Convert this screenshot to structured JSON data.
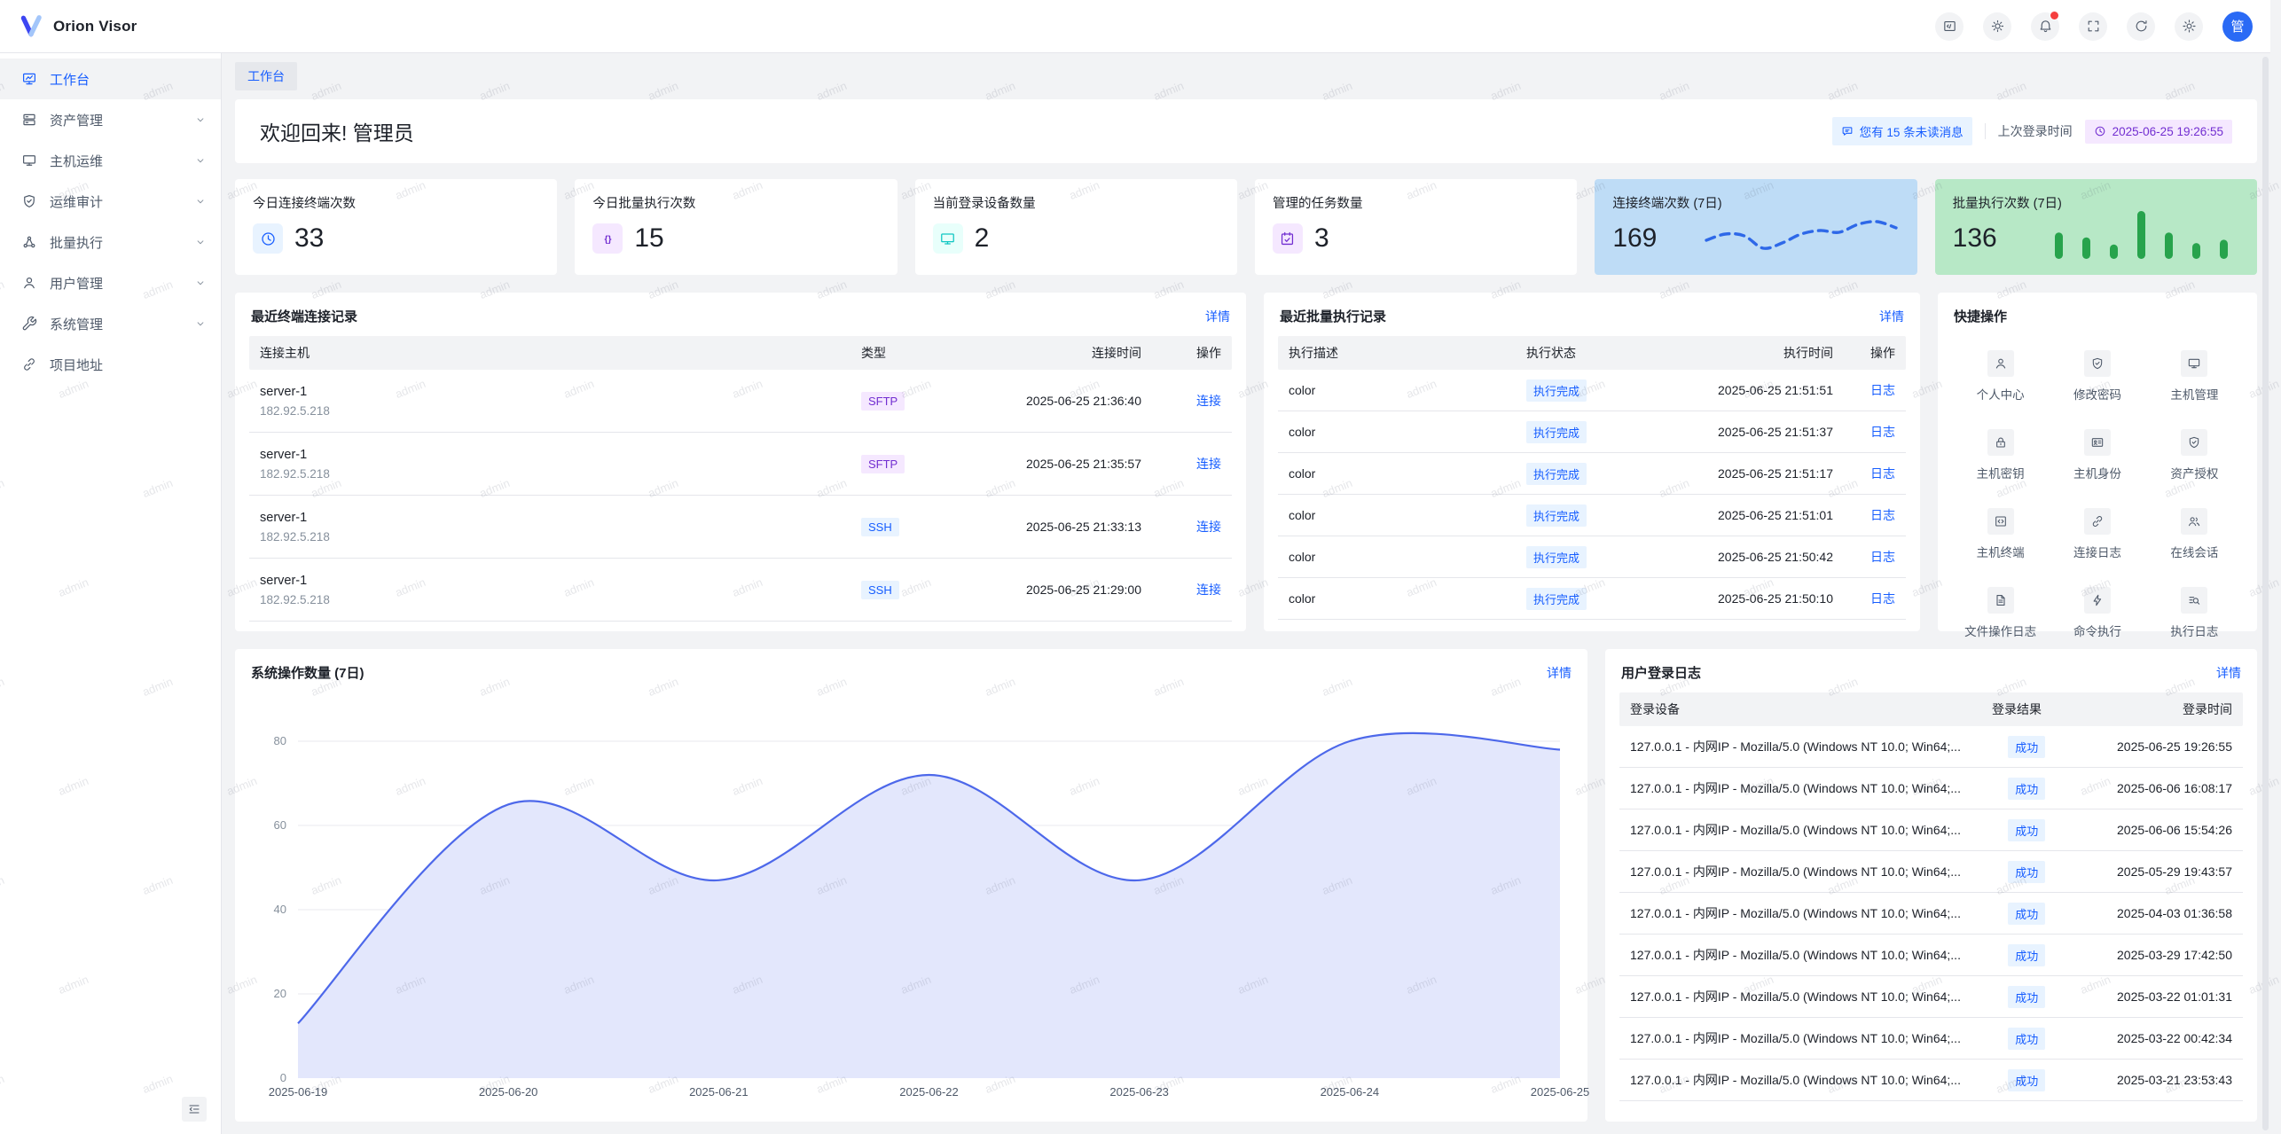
{
  "topbar": {
    "brand": "Orion Visor",
    "avatar": "管",
    "icons": [
      {
        "key": "code",
        "name": "code-icon"
      },
      {
        "key": "sun",
        "name": "theme-icon"
      },
      {
        "key": "bell",
        "name": "notifications-icon",
        "dot": true
      },
      {
        "key": "fullscreen",
        "name": "fullscreen-icon"
      },
      {
        "key": "refresh",
        "name": "refresh-icon"
      },
      {
        "key": "gear",
        "name": "settings-icon"
      }
    ]
  },
  "sidebar": {
    "items": [
      {
        "key": "workbench",
        "label": "工作台",
        "icon": "dashboard",
        "active": true,
        "chevron": false
      },
      {
        "key": "assets",
        "label": "资产管理",
        "icon": "asset",
        "chevron": true
      },
      {
        "key": "host-ops",
        "label": "主机运维",
        "icon": "monitor",
        "chevron": true
      },
      {
        "key": "ops-audit",
        "label": "运维审计",
        "icon": "shield-check",
        "chevron": true
      },
      {
        "key": "batch-exec",
        "label": "批量执行",
        "icon": "batch",
        "chevron": true
      },
      {
        "key": "user-mgmt",
        "label": "用户管理",
        "icon": "user",
        "chevron": true
      },
      {
        "key": "system-mgmt",
        "label": "系统管理",
        "icon": "wrench",
        "chevron": true
      },
      {
        "key": "project-link",
        "label": "项目地址",
        "icon": "link",
        "chevron": false
      }
    ]
  },
  "breadcrumb": "工作台",
  "welcome": {
    "title": "欢迎回来! 管理员",
    "unread_badge": "您有 15 条未读消息",
    "last_login_label": "上次登录时间",
    "last_login_time": "2025-06-25 19:26:55"
  },
  "stats": {
    "cards": [
      {
        "key": "today-terminal-connections",
        "label": "今日连接终端次数",
        "value": "33",
        "icon": "clock",
        "icon_color": "#165dff",
        "icon_bg": "#e8f3ff"
      },
      {
        "key": "today-batch-executions",
        "label": "今日批量执行次数",
        "value": "15",
        "icon": "braces",
        "icon_color": "#722ed1",
        "icon_bg": "#f5e8ff"
      },
      {
        "key": "current-login-devices",
        "label": "当前登录设备数量",
        "value": "2",
        "icon": "monitor",
        "icon_color": "#0fc6c2",
        "icon_bg": "#e8fffb"
      },
      {
        "key": "managed-tasks",
        "label": "管理的任务数量",
        "value": "3",
        "icon": "task",
        "icon_color": "#722ed1",
        "icon_bg": "#f5e8ff"
      },
      {
        "key": "terminal-connections-7d",
        "label": "连接终端次数 (7日)",
        "value": "169",
        "card_bg": "#bedcf6",
        "sparkline": {
          "type": "line",
          "color": "#2e68e8",
          "values": [
            42,
            56,
            52,
            24,
            36,
            56,
            64,
            60,
            78,
            84,
            70
          ]
        }
      },
      {
        "key": "batch-executions-7d",
        "label": "批量执行次数 (7日)",
        "value": "136",
        "card_bg": "#b7e8c6",
        "sparkline": {
          "type": "bar",
          "color": "#27a34c",
          "values": [
            55,
            45,
            30,
            100,
            55,
            33,
            40
          ]
        }
      }
    ]
  },
  "recent_connections": {
    "title": "最近终端连接记录",
    "detail_link": "详情",
    "headers": [
      "连接主机",
      "类型",
      "连接时间",
      "操作"
    ],
    "rows": [
      {
        "host": "server-1",
        "ip": "182.92.5.218",
        "type": "SFTP",
        "time": "2025-06-25 21:36:40",
        "action": "连接"
      },
      {
        "host": "server-1",
        "ip": "182.92.5.218",
        "type": "SFTP",
        "time": "2025-06-25 21:35:57",
        "action": "连接"
      },
      {
        "host": "server-1",
        "ip": "182.92.5.218",
        "type": "SSH",
        "time": "2025-06-25 21:33:13",
        "action": "连接"
      },
      {
        "host": "server-1",
        "ip": "182.92.5.218",
        "type": "SSH",
        "time": "2025-06-25 21:29:00",
        "action": "连接"
      }
    ]
  },
  "recent_executions": {
    "title": "最近批量执行记录",
    "detail_link": "详情",
    "headers": [
      "执行描述",
      "执行状态",
      "执行时间",
      "操作"
    ],
    "rows": [
      {
        "desc": "color",
        "status": "执行完成",
        "time": "2025-06-25 21:51:51",
        "action": "日志"
      },
      {
        "desc": "color",
        "status": "执行完成",
        "time": "2025-06-25 21:51:37",
        "action": "日志"
      },
      {
        "desc": "color",
        "status": "执行完成",
        "time": "2025-06-25 21:51:17",
        "action": "日志"
      },
      {
        "desc": "color",
        "status": "执行完成",
        "time": "2025-06-25 21:51:01",
        "action": "日志"
      },
      {
        "desc": "color",
        "status": "执行完成",
        "time": "2025-06-25 21:50:42",
        "action": "日志"
      },
      {
        "desc": "color",
        "status": "执行完成",
        "time": "2025-06-25 21:50:10",
        "action": "日志"
      }
    ]
  },
  "quick_actions": {
    "title": "快捷操作",
    "items": [
      {
        "key": "personal-center",
        "label": "个人中心",
        "icon": "user"
      },
      {
        "key": "change-password",
        "label": "修改密码",
        "icon": "shield-check"
      },
      {
        "key": "host-management",
        "label": "主机管理",
        "icon": "monitor"
      },
      {
        "key": "host-keys",
        "label": "主机密钥",
        "icon": "lock"
      },
      {
        "key": "host-identity",
        "label": "主机身份",
        "icon": "id-card"
      },
      {
        "key": "asset-authorization",
        "label": "资产授权",
        "icon": "shield-check"
      },
      {
        "key": "host-terminal",
        "label": "主机终端",
        "icon": "code-square"
      },
      {
        "key": "connection-log",
        "label": "连接日志",
        "icon": "link"
      },
      {
        "key": "online-sessions",
        "label": "在线会话",
        "icon": "users"
      },
      {
        "key": "file-operation-log",
        "label": "文件操作日志",
        "icon": "file-text"
      },
      {
        "key": "command-execution",
        "label": "命令执行",
        "icon": "lightning"
      },
      {
        "key": "execution-log",
        "label": "执行日志",
        "icon": "search-list"
      }
    ]
  },
  "operations_chart": {
    "title": "系统操作数量 (7日)",
    "detail_link": "详情",
    "chart_data": {
      "type": "area",
      "x": [
        "2025-06-19",
        "2025-06-20",
        "2025-06-21",
        "2025-06-22",
        "2025-06-23",
        "2025-06-24",
        "2025-06-25"
      ],
      "values": [
        13,
        65,
        47,
        72,
        47,
        80,
        78
      ],
      "ylim": [
        0,
        80
      ],
      "yticks": [
        0,
        20,
        40,
        60,
        80
      ],
      "line_color": "#4d68ea",
      "fill_color": "#e3e7fc",
      "grid": true
    }
  },
  "login_logs": {
    "title": "用户登录日志",
    "detail_link": "详情",
    "headers": [
      "登录设备",
      "登录结果",
      "登录时间"
    ],
    "rows": [
      {
        "device": "127.0.0.1 - 内网IP - Mozilla/5.0 (Windows NT 10.0; Win64;...",
        "result": "成功",
        "time": "2025-06-25 19:26:55"
      },
      {
        "device": "127.0.0.1 - 内网IP - Mozilla/5.0 (Windows NT 10.0; Win64;...",
        "result": "成功",
        "time": "2025-06-06 16:08:17"
      },
      {
        "device": "127.0.0.1 - 内网IP - Mozilla/5.0 (Windows NT 10.0; Win64;...",
        "result": "成功",
        "time": "2025-06-06 15:54:26"
      },
      {
        "device": "127.0.0.1 - 内网IP - Mozilla/5.0 (Windows NT 10.0; Win64;...",
        "result": "成功",
        "time": "2025-05-29 19:43:57"
      },
      {
        "device": "127.0.0.1 - 内网IP - Mozilla/5.0 (Windows NT 10.0; Win64;...",
        "result": "成功",
        "time": "2025-04-03 01:36:58"
      },
      {
        "device": "127.0.0.1 - 内网IP - Mozilla/5.0 (Windows NT 10.0; Win64;...",
        "result": "成功",
        "time": "2025-03-29 17:42:50"
      },
      {
        "device": "127.0.0.1 - 内网IP - Mozilla/5.0 (Windows NT 10.0; Win64;...",
        "result": "成功",
        "time": "2025-03-22 01:01:31"
      },
      {
        "device": "127.0.0.1 - 内网IP - Mozilla/5.0 (Windows NT 10.0; Win64;...",
        "result": "成功",
        "time": "2025-03-22 00:42:34"
      },
      {
        "device": "127.0.0.1 - 内网IP - Mozilla/5.0 (Windows NT 10.0; Win64;...",
        "result": "成功",
        "time": "2025-03-21 23:53:43"
      }
    ]
  },
  "watermark_text": "admin",
  "colors": {
    "accent": "#165dff",
    "purple": "#722ed1",
    "teal": "#0fc6c2",
    "green": "#27a34c",
    "notification_dot": "#f53f3f",
    "card_blue_bg": "#bedcf6",
    "card_green_bg": "#b7e8c6",
    "page_bg": "#f2f3f5"
  }
}
